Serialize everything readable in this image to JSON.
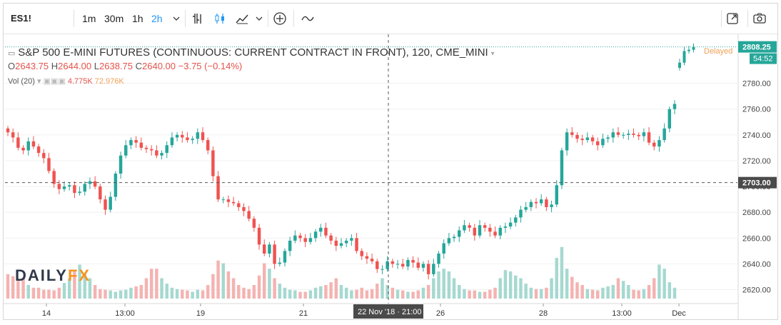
{
  "toolbar": {
    "symbol": "ES1!",
    "intervals": [
      "1m",
      "30m",
      "1h",
      "2h"
    ],
    "active_interval": "2h",
    "icons": [
      "compare-bars-icon",
      "candles-icon",
      "indicators-icon",
      "chevron-down-icon",
      "add-icon",
      "wave-icon",
      "fullscreen-icon",
      "camera-icon"
    ]
  },
  "legend": {
    "title": "S&P 500 E-MINI FUTURES (CONTINUOUS: CURRENT CONTRACT IN FRONT), 120, CME_MINI",
    "o_label": "O",
    "o": "2643.75",
    "h_label": "H",
    "h": "2644.00",
    "l_label": "L",
    "l": "2638.75",
    "c_label": "C",
    "c": "2640.00",
    "change": "−3.75 (−0.14%)",
    "vol_label": "Vol (20)",
    "vol_value": "4.775K",
    "vol_ma": "72.976K",
    "delayed": "Delayed"
  },
  "logo": {
    "daily": "DAILY",
    "fx": "FX"
  },
  "chart_data": {
    "type": "candlestick",
    "title": "S&P 500 E-MINI FUTURES (CONTINUOUS: CURRENT CONTRACT IN FRONT), 120, CME_MINI",
    "ylim": [
      2612,
      2818
    ],
    "y_ticks": [
      "2620.00",
      "2640.00",
      "2660.00",
      "2680.00",
      "2700.00",
      "2720.00",
      "2740.00",
      "2760.00",
      "2780.00"
    ],
    "x_ticks": [
      "14",
      "13:00",
      "19",
      "21",
      "26",
      "28",
      "13:00",
      "Dec"
    ],
    "price_label": "2808.25",
    "countdown_label": "54:52",
    "crosshair_price": "2703.00",
    "crosshair_time": "22 Nov '18 · 21:00",
    "close_series": [
      2742,
      2738,
      2730,
      2728,
      2735,
      2731,
      2726,
      2722,
      2712,
      2702,
      2698,
      2700,
      2701,
      2695,
      2696,
      2702,
      2704,
      2700,
      2690,
      2682,
      2692,
      2710,
      2724,
      2732,
      2736,
      2734,
      2730,
      2729,
      2728,
      2724,
      2726,
      2732,
      2738,
      2740,
      2738,
      2736,
      2737,
      2742,
      2736,
      2728,
      2708,
      2690,
      2690,
      2688,
      2687,
      2684,
      2681,
      2675,
      2668,
      2655,
      2648,
      2655,
      2640,
      2641,
      2650,
      2658,
      2662,
      2660,
      2657,
      2660,
      2665,
      2668,
      2662,
      2658,
      2654,
      2656,
      2658,
      2660,
      2650,
      2646,
      2644,
      2642,
      2636,
      2636,
      2642,
      2640,
      2640,
      2638,
      2643,
      2641,
      2637,
      2640,
      2632,
      2640,
      2648,
      2656,
      2660,
      2661,
      2666,
      2670,
      2668,
      2662,
      2670,
      2668,
      2665,
      2662,
      2668,
      2669,
      2672,
      2676,
      2682,
      2684,
      2688,
      2687,
      2690,
      2684,
      2686,
      2701,
      2728,
      2742,
      2740,
      2737,
      2736,
      2738,
      2735,
      2732,
      2737,
      2738,
      2742,
      2740,
      2740,
      2741,
      2740,
      2739,
      2742,
      2734,
      2731,
      2736,
      2745,
      2760,
      2764
    ],
    "volume_series": [
      0.36,
      0.33,
      0.26,
      0.3,
      0.2,
      0.16,
      0.16,
      0.13,
      0.13,
      0.12,
      0.16,
      0.23,
      0.3,
      0.42,
      0.5,
      0.36,
      0.3,
      0.2,
      0.14,
      0.13,
      0.12,
      0.1,
      0.12,
      0.13,
      0.16,
      0.18,
      0.2,
      0.3,
      0.44,
      0.44,
      0.3,
      0.22,
      0.16,
      0.14,
      0.13,
      0.12,
      0.1,
      0.13,
      0.12,
      0.2,
      0.36,
      0.56,
      0.52,
      0.4,
      0.3,
      0.2,
      0.16,
      0.14,
      0.2,
      0.34,
      0.52,
      0.44,
      0.3,
      0.22,
      0.16,
      0.13,
      0.12,
      0.1,
      0.1,
      0.12,
      0.16,
      0.18,
      0.2,
      0.24,
      0.3,
      0.2,
      0.16,
      0.12,
      0.13,
      0.16,
      0.12,
      0.14,
      0.22,
      0.3,
      0.2,
      0.16,
      0.13,
      0.12,
      0.1,
      0.1,
      0.12,
      0.16,
      0.2,
      0.3,
      0.4,
      0.44,
      0.4,
      0.3,
      0.2,
      0.14,
      0.12,
      0.12,
      0.1,
      0.1,
      0.13,
      0.16,
      0.3,
      0.42,
      0.4,
      0.34,
      0.3,
      0.22,
      0.16,
      0.14,
      0.14,
      0.16,
      0.3,
      0.6,
      0.76,
      0.44,
      0.32,
      0.24,
      0.2,
      0.14,
      0.13,
      0.12,
      0.16,
      0.18,
      0.2,
      0.3,
      0.26,
      0.2,
      0.13,
      0.12,
      0.14,
      0.2,
      0.3,
      0.5,
      0.44,
      0.24,
      0.16
    ]
  }
}
